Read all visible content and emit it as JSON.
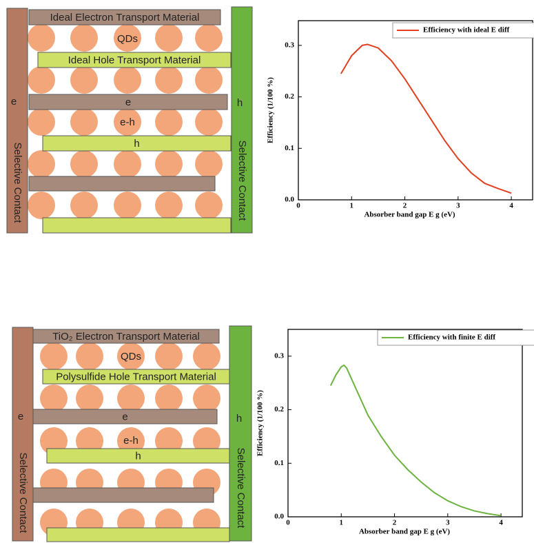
{
  "diagrams": [
    {
      "left_contact": {
        "carrier": "e",
        "label": "Selective Contact"
      },
      "right_contact": {
        "carrier": "h",
        "label": "Selective Contact"
      },
      "layers": [
        "Ideal Electron Transport Material",
        "Ideal Hole Transport Material",
        "e",
        "h"
      ],
      "qd_label": "QDs",
      "exciton_label": "e-h"
    },
    {
      "left_contact": {
        "carrier": "e",
        "label": "Selective Contact"
      },
      "right_contact": {
        "carrier": "h",
        "label": "Selective Contact"
      },
      "layers": [
        "TiO₂ Electron Transport Material",
        "Polysulfide Hole Transport Material",
        "e",
        "h"
      ],
      "qd_label": "QDs",
      "exciton_label": "e-h"
    }
  ],
  "chart_data": [
    {
      "type": "line",
      "x_label": "Absorber band gap E g (eV)",
      "y_label": "Efficiency (1/100 %)",
      "x": [
        0.8,
        1.0,
        1.2,
        1.3,
        1.5,
        1.75,
        2.0,
        2.25,
        2.5,
        2.75,
        3.0,
        3.25,
        3.5,
        3.75,
        4.0
      ],
      "series": [
        {
          "name": "Efficiency with ideal E diff",
          "color": "#e0401e",
          "values": [
            0.245,
            0.28,
            0.3,
            0.302,
            0.295,
            0.27,
            0.235,
            0.195,
            0.155,
            0.115,
            0.08,
            0.052,
            0.032,
            0.022,
            0.013
          ]
        }
      ],
      "xlim": [
        0,
        4.4
      ],
      "ylim": [
        0,
        0.348
      ],
      "xticks": [
        0,
        1,
        2,
        3,
        4
      ],
      "yticks": [
        {
          "value": 0,
          "label": "0.0"
        },
        0.1,
        0.2,
        0.3
      ],
      "grid": false,
      "legend": "top-right"
    },
    {
      "type": "line",
      "x_label": "Absorber band gap E g (eV)",
      "y_label": "Efficiency (1/100 %)",
      "x": [
        0.8,
        0.9,
        1.0,
        1.05,
        1.1,
        1.25,
        1.5,
        1.75,
        2.0,
        2.25,
        2.5,
        2.75,
        3.0,
        3.25,
        3.5,
        3.75,
        4.0
      ],
      "series": [
        {
          "name": "Efficiency with finite E diff",
          "color": "#6cb33f",
          "values": [
            0.245,
            0.265,
            0.28,
            0.283,
            0.278,
            0.245,
            0.19,
            0.15,
            0.115,
            0.088,
            0.065,
            0.045,
            0.03,
            0.019,
            0.011,
            0.006,
            0.002
          ]
        }
      ],
      "xlim": [
        0,
        4.4
      ],
      "ylim": [
        0,
        0.35
      ],
      "xticks": [
        0,
        1,
        2,
        3,
        4
      ],
      "yticks": [
        {
          "value": 0,
          "label": "0.0"
        },
        0.1,
        0.2,
        0.3
      ],
      "grid": false,
      "legend": "top-right"
    }
  ]
}
